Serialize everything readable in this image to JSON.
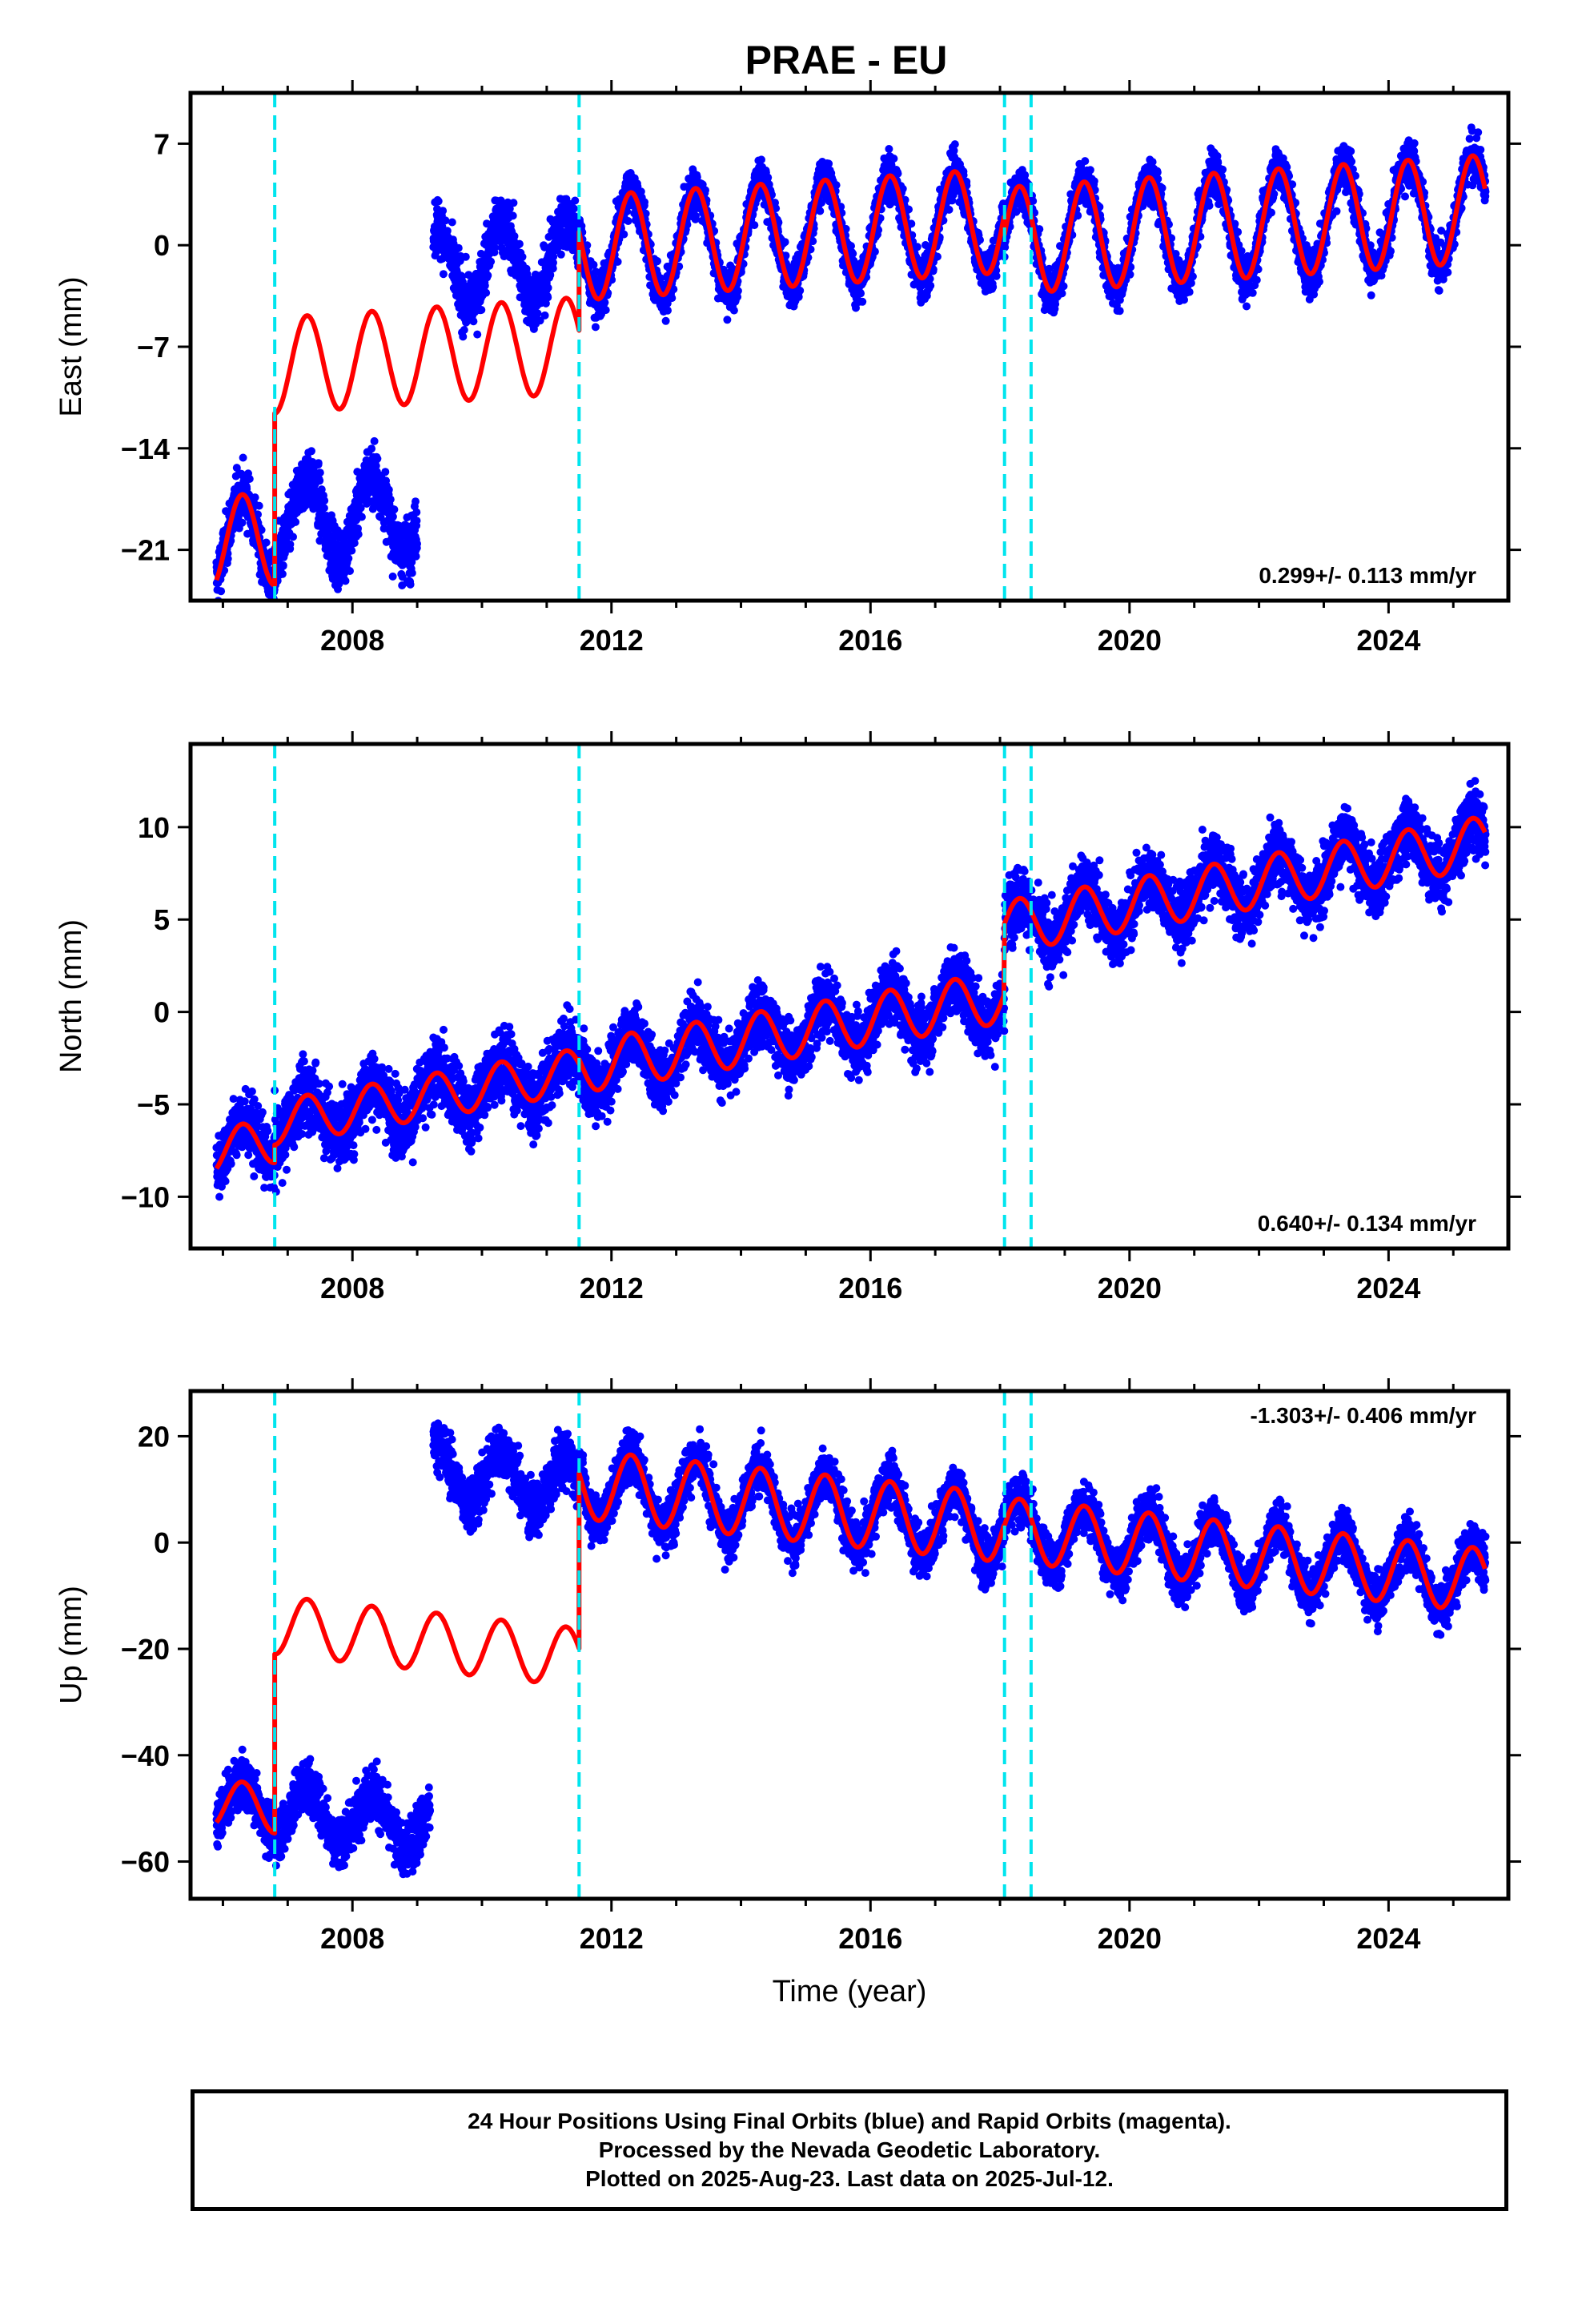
{
  "title": "PRAE - EU",
  "colors": {
    "points": "#0000ff",
    "model": "#ff0000",
    "steps": "#00e5ee",
    "axes": "#000000"
  },
  "chart_data": [
    {
      "type": "scatter",
      "component": "east",
      "ylabel": "East (mm)",
      "xlabel": "",
      "xlim": [
        2005.5,
        2025.85
      ],
      "ylim": [
        -24.5,
        10.5
      ],
      "yticks": [
        7,
        0,
        -7,
        -14,
        -21
      ],
      "xticks": [
        2008,
        2012,
        2016,
        2020,
        2024
      ],
      "rate": "0.299+/- 0.113 mm/yr",
      "rate_position": "bottom-right",
      "steps": [
        2006.8,
        2011.5,
        2018.07,
        2018.48
      ],
      "segments": [
        {
          "x": [
            2005.9,
            2006.8
          ],
          "y0": -20.5,
          "slope": 0.3,
          "amp": 3.2,
          "phase": 0.05,
          "kind": "both",
          "scatter": 1.3
        },
        {
          "x": [
            2006.8,
            2009.0
          ],
          "y0": -19.0,
          "slope": 0.3,
          "amp": 2.8,
          "phase": 0.05,
          "kind": "points",
          "scatter": 1.4
        },
        {
          "x": [
            2006.8,
            2011.5
          ],
          "y0": -8.3,
          "slope": 0.3,
          "amp": 3.3,
          "phase": 0.05,
          "kind": "model",
          "scatter": 0
        },
        {
          "x": [
            2009.25,
            2011.5
          ],
          "y0": -1.5,
          "slope": 0.3,
          "amp": 2.7,
          "phase": 0.05,
          "kind": "points",
          "scatter": 1.4
        },
        {
          "x": [
            2011.5,
            2018.07
          ],
          "y0": -0.2,
          "slope": 0.29,
          "amp": 3.6,
          "phase": 0.05,
          "kind": "both",
          "scatter": 1.1
        },
        {
          "x": [
            2018.07,
            2025.5
          ],
          "y0": 0.3,
          "slope": 0.3,
          "amp": 3.7,
          "phase": 0.05,
          "kind": "both",
          "scatter": 1.1
        }
      ]
    },
    {
      "type": "scatter",
      "component": "north",
      "ylabel": "North (mm)",
      "xlabel": "",
      "xlim": [
        2005.5,
        2025.85
      ],
      "ylim": [
        -12.8,
        14.5
      ],
      "yticks": [
        10,
        5,
        0,
        -5,
        -10
      ],
      "xticks": [
        2008,
        2012,
        2016,
        2020,
        2024
      ],
      "rate": "0.640+/- 0.134 mm/yr",
      "rate_position": "bottom-right",
      "steps": [
        2006.8,
        2011.5,
        2018.07,
        2018.48
      ],
      "segments": [
        {
          "x": [
            2005.9,
            2006.8
          ],
          "y0": -7.5,
          "slope": 0.6,
          "amp": 1.2,
          "phase": 0.05,
          "kind": "both",
          "scatter": 1.2
        },
        {
          "x": [
            2006.8,
            2011.5
          ],
          "y0": -6.0,
          "slope": 0.6,
          "amp": 1.2,
          "phase": 0.05,
          "kind": "both",
          "scatter": 1.3
        },
        {
          "x": [
            2011.5,
            2018.07
          ],
          "y0": -3.0,
          "slope": 0.58,
          "amp": 1.4,
          "phase": 0.05,
          "kind": "both",
          "scatter": 1.2
        },
        {
          "x": [
            2018.07,
            2025.5
          ],
          "y0": 4.6,
          "slope": 0.62,
          "amp": 1.4,
          "phase": 0.05,
          "kind": "both",
          "scatter": 1.2
        }
      ]
    },
    {
      "type": "scatter",
      "component": "up",
      "ylabel": "Up (mm)",
      "xlabel": "Time (year)",
      "xlim": [
        2005.5,
        2025.85
      ],
      "ylim": [
        -67,
        28.5
      ],
      "yticks": [
        20,
        0,
        -20,
        -40,
        -60
      ],
      "xticks": [
        2008,
        2012,
        2016,
        2020,
        2024
      ],
      "rate": "-1.303+/- 0.406 mm/yr",
      "rate_position": "top-right",
      "steps": [
        2006.8,
        2011.5,
        2018.07,
        2018.48
      ],
      "segments": [
        {
          "x": [
            2005.9,
            2006.8
          ],
          "y0": -49.0,
          "slope": -1.3,
          "amp": 4.5,
          "phase": 0.05,
          "kind": "both",
          "scatter": 3.2
        },
        {
          "x": [
            2006.8,
            2009.2
          ],
          "y0": -50.0,
          "slope": -1.3,
          "amp": 5.0,
          "phase": 0.05,
          "kind": "points",
          "scatter": 3.6
        },
        {
          "x": [
            2006.8,
            2011.5
          ],
          "y0": -15.5,
          "slope": -1.3,
          "amp": 5.5,
          "phase": 0.05,
          "kind": "model",
          "scatter": 0
        },
        {
          "x": [
            2009.25,
            2011.5
          ],
          "y0": 13.5,
          "slope": -1.3,
          "amp": 5.0,
          "phase": 0.05,
          "kind": "points",
          "scatter": 3.5
        },
        {
          "x": [
            2011.5,
            2018.07
          ],
          "y0": 11.0,
          "slope": -1.25,
          "amp": 6.5,
          "phase": 0.05,
          "kind": "both",
          "scatter": 3.3
        },
        {
          "x": [
            2018.07,
            2025.5
          ],
          "y0": 2.5,
          "slope": -1.3,
          "amp": 6.0,
          "phase": 0.05,
          "kind": "both",
          "scatter": 3.3
        }
      ]
    }
  ],
  "caption": {
    "line1": "24 Hour Positions Using Final Orbits (blue) and Rapid Orbits (magenta).",
    "line2": "Processed by the Nevada Geodetic Laboratory.",
    "line3": "Plotted on 2025-Aug-23. Last data on 2025-Jul-12."
  }
}
